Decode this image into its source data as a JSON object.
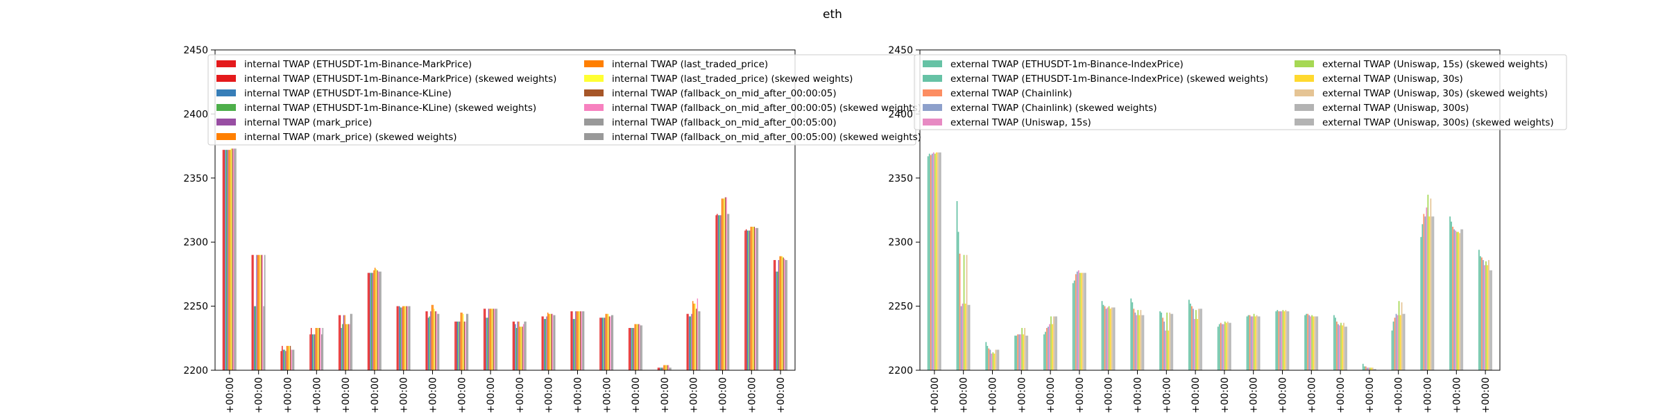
{
  "figure": {
    "title": "eth"
  },
  "chart_data": [
    {
      "type": "bar",
      "title": "",
      "xlabel": "",
      "ylabel": "",
      "ylim": [
        2200,
        2450
      ],
      "yticks": [
        2200,
        2250,
        2300,
        2350,
        2400,
        2450
      ],
      "grid": false,
      "legend_placement": "top",
      "categories": [
        "+00:00",
        "+00:00",
        "+00:00",
        "+00:00",
        "+00:00",
        "+00:00",
        "+00:00",
        "+00:00",
        "+00:00",
        "+00:00",
        "+00:00",
        "+00:00",
        "+00:00",
        "+00:00",
        "+00:00",
        "+00:00",
        "+00:00",
        "+00:00",
        "+00:00",
        "+00:00"
      ],
      "series": [
        {
          "name": "internal TWAP (ETHUSDT-1m-Binance-MarkPrice)",
          "color": "#e41a1c",
          "values": [
            2372,
            2290,
            2215,
            2228,
            2243,
            2276,
            2250,
            2246,
            2238,
            2248,
            2238,
            2242,
            2246,
            2241,
            2233,
            2202,
            2244,
            2321,
            2309,
            2286
          ]
        },
        {
          "name": "internal TWAP (ETHUSDT-1m-Binance-MarkPrice) (skewed weights)",
          "color": "#e41a1c",
          "values": [
            2372,
            2290,
            2219,
            2233,
            2243,
            2276,
            2250,
            2246,
            2238,
            2248,
            2238,
            2242,
            2246,
            2241,
            2233,
            2202,
            2244,
            2322,
            2310,
            2286
          ]
        },
        {
          "name": "internal TWAP (ETHUSDT-1m-Binance-KLine)",
          "color": "#377eb8",
          "values": [
            2372,
            2250,
            2216,
            2228,
            2233,
            2276,
            2250,
            2241,
            2238,
            2241,
            2236,
            2240,
            2240,
            2241,
            2233,
            2202,
            2242,
            2321,
            2309,
            2277
          ]
        },
        {
          "name": "internal TWAP (ETHUSDT-1m-Binance-KLine) (skewed weights)",
          "color": "#4daf4a",
          "values": [
            2372,
            2250,
            2216,
            2228,
            2236,
            2276,
            2249,
            2242,
            2238,
            2241,
            2233,
            2240,
            2240,
            2241,
            2233,
            2202,
            2242,
            2321,
            2309,
            2277
          ]
        },
        {
          "name": "internal TWAP (mark_price)",
          "color": "#984ea3",
          "values": [
            2372,
            2290,
            2215,
            2228,
            2243,
            2276,
            2249,
            2246,
            2238,
            2248,
            2238,
            2242,
            2246,
            2241,
            2233,
            2202,
            2244,
            2321,
            2309,
            2286
          ]
        },
        {
          "name": "internal TWAP (mark_price) (skewed weights)",
          "color": "#ff7f00",
          "values": [
            2372,
            2290,
            2219,
            2233,
            2243,
            2278,
            2250,
            2251,
            2245,
            2248,
            2238,
            2245,
            2246,
            2244,
            2236,
            2204,
            2254,
            2334,
            2312,
            2289
          ]
        },
        {
          "name": "internal TWAP (last_traded_price)",
          "color": "#ff7f00",
          "values": [
            2372,
            2290,
            2219,
            2233,
            2236,
            2280,
            2250,
            2251,
            2245,
            2248,
            2234,
            2244,
            2246,
            2244,
            2236,
            2204,
            2252,
            2334,
            2312,
            2289
          ]
        },
        {
          "name": "internal TWAP (last_traded_price) (skewed weights)",
          "color": "#ffff33",
          "values": [
            2373,
            2290,
            2219,
            2233,
            2236,
            2279,
            2250,
            2248,
            2244,
            2248,
            2234,
            2244,
            2246,
            2244,
            2236,
            2204,
            2252,
            2334,
            2312,
            2289
          ]
        },
        {
          "name": "internal TWAP (fallback_on_mid_after_00:00:05)",
          "color": "#a65628",
          "values": [
            2373,
            2290,
            2219,
            2233,
            2236,
            2278,
            2250,
            2246,
            2238,
            2248,
            2234,
            2244,
            2246,
            2242,
            2236,
            2204,
            2248,
            2335,
            2312,
            2288
          ]
        },
        {
          "name": "internal TWAP (fallback_on_mid_after_00:00:05) (skewed weights)",
          "color": "#f781bf",
          "values": [
            2373,
            2290,
            2216,
            2233,
            2236,
            2277,
            2250,
            2246,
            2238,
            2248,
            2236,
            2244,
            2246,
            2242,
            2236,
            2204,
            2256,
            2335,
            2311,
            2287
          ]
        },
        {
          "name": "internal TWAP (fallback_on_mid_after_00:05:00)",
          "color": "#999999",
          "values": [
            2373,
            2250,
            2216,
            2228,
            2244,
            2277,
            2250,
            2244,
            2244,
            2248,
            2238,
            2243,
            2246,
            2243,
            2235,
            2202,
            2246,
            2322,
            2311,
            2286
          ]
        },
        {
          "name": "internal TWAP (fallback_on_mid_after_00:05:00) (skewed weights)",
          "color": "#999999",
          "values": [
            2373,
            2290,
            2216,
            2233,
            2244,
            2277,
            2250,
            2244,
            2244,
            2248,
            2238,
            2243,
            2246,
            2243,
            2235,
            2202,
            2246,
            2322,
            2311,
            2286
          ]
        }
      ]
    },
    {
      "type": "bar",
      "title": "",
      "xlabel": "",
      "ylabel": "",
      "ylim": [
        2200,
        2450
      ],
      "yticks": [
        2200,
        2250,
        2300,
        2350,
        2400,
        2450
      ],
      "grid": false,
      "legend_placement": "top",
      "categories": [
        "+00:00",
        "+00:00",
        "+00:00",
        "+00:00",
        "+00:00",
        "+00:00",
        "+00:00",
        "+00:00",
        "+00:00",
        "+00:00",
        "+00:00",
        "+00:00",
        "+00:00",
        "+00:00",
        "+00:00",
        "+00:00",
        "+00:00",
        "+00:00",
        "+00:00",
        "+00:00"
      ],
      "series": [
        {
          "name": "external TWAP (ETHUSDT-1m-Binance-IndexPrice)",
          "color": "#66c2a5",
          "values": [
            2367,
            2332,
            2222,
            2227,
            2228,
            2268,
            2254,
            2256,
            2246,
            2255,
            2234,
            2242,
            2246,
            2243,
            2243,
            2205,
            2231,
            2304,
            2320,
            2294
          ]
        },
        {
          "name": "external TWAP (ETHUSDT-1m-Binance-IndexPrice) (skewed weights)",
          "color": "#66c2a5",
          "values": [
            2369,
            2308,
            2219,
            2227,
            2230,
            2270,
            2251,
            2253,
            2245,
            2252,
            2236,
            2243,
            2247,
            2244,
            2241,
            2203,
            2238,
            2314,
            2316,
            2289
          ]
        },
        {
          "name": "external TWAP (Chainlink)",
          "color": "#fc8d62",
          "values": [
            2368,
            2291,
            2217,
            2228,
            2233,
            2275,
            2250,
            2248,
            2241,
            2250,
            2237,
            2243,
            2246,
            2244,
            2238,
            2203,
            2241,
            2322,
            2312,
            2288
          ]
        },
        {
          "name": "external TWAP (Chainlink) (skewed weights)",
          "color": "#8da0cb",
          "values": [
            2369,
            2250,
            2216,
            2228,
            2234,
            2277,
            2248,
            2245,
            2238,
            2248,
            2236,
            2242,
            2246,
            2243,
            2236,
            2202,
            2244,
            2320,
            2310,
            2286
          ]
        },
        {
          "name": "external TWAP (Uniswap, 15s)",
          "color": "#e78ac3",
          "values": [
            2370,
            2252,
            2213,
            2228,
            2236,
            2278,
            2249,
            2243,
            2231,
            2240,
            2236,
            2242,
            2246,
            2242,
            2235,
            2202,
            2243,
            2327,
            2309,
            2282
          ]
        },
        {
          "name": "external TWAP (Uniswap, 15s) (skewed weights)",
          "color": "#a6d854",
          "values": [
            2369,
            2290,
            2214,
            2233,
            2242,
            2276,
            2250,
            2247,
            2245,
            2247,
            2238,
            2244,
            2247,
            2243,
            2237,
            2202,
            2254,
            2337,
            2308,
            2285
          ]
        },
        {
          "name": "external TWAP (Uniswap, 30s)",
          "color": "#ffd92f",
          "values": [
            2370,
            2252,
            2213,
            2228,
            2236,
            2276,
            2248,
            2243,
            2231,
            2240,
            2237,
            2242,
            2246,
            2242,
            2235,
            2202,
            2243,
            2320,
            2308,
            2282
          ]
        },
        {
          "name": "external TWAP (Uniswap, 30s) (skewed weights)",
          "color": "#e5c494",
          "values": [
            2370,
            2290,
            2216,
            2233,
            2242,
            2276,
            2249,
            2247,
            2245,
            2248,
            2238,
            2243,
            2247,
            2242,
            2237,
            2202,
            2253,
            2334,
            2307,
            2286
          ]
        },
        {
          "name": "external TWAP (Uniswap, 300s)",
          "color": "#b3b3b3",
          "values": [
            2370,
            2251,
            2216,
            2227,
            2242,
            2276,
            2249,
            2243,
            2244,
            2248,
            2237,
            2242,
            2246,
            2242,
            2234,
            2201,
            2244,
            2320,
            2310,
            2278
          ]
        },
        {
          "name": "external TWAP (Uniswap, 300s) (skewed weights)",
          "color": "#b3b3b3",
          "values": [
            2370,
            2251,
            2216,
            2227,
            2242,
            2276,
            2249,
            2243,
            2244,
            2248,
            2237,
            2242,
            2246,
            2242,
            2234,
            2201,
            2244,
            2320,
            2310,
            2278
          ]
        }
      ]
    }
  ]
}
